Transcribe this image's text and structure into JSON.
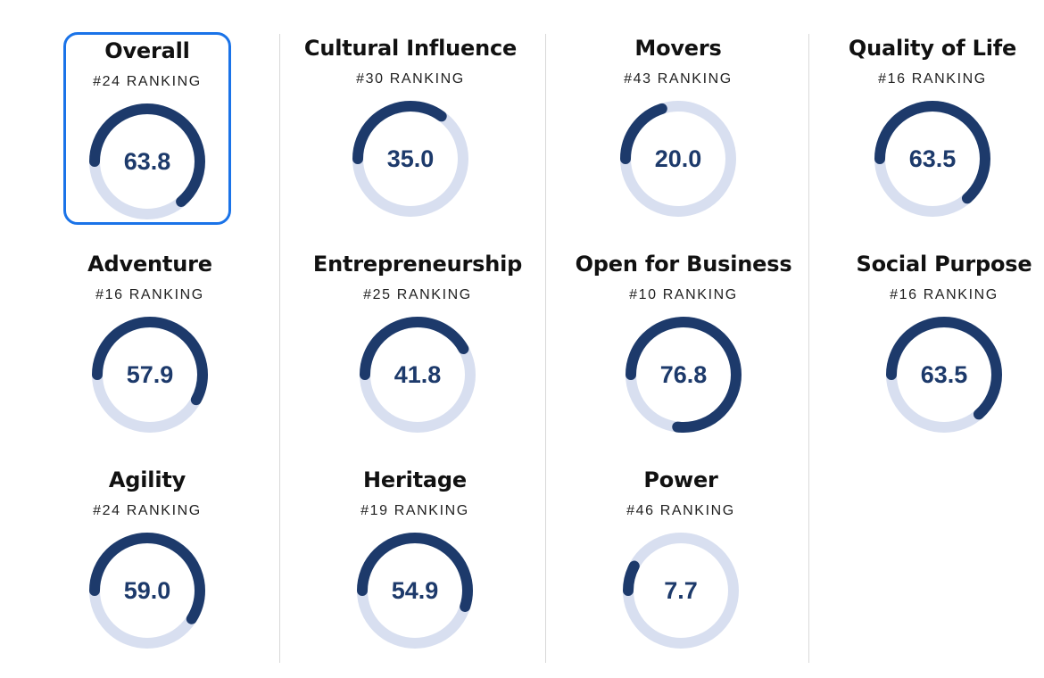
{
  "colors": {
    "track": "#d8dff0",
    "progress": "#1d3a6b",
    "selected_border": "#1a73e8"
  },
  "scale_max": 100,
  "cards": [
    {
      "title": "Overall",
      "rank": "#24 RANKING",
      "value": "63.8",
      "score": 63.8,
      "selected": true
    },
    {
      "title": "Cultural Influence",
      "rank": "#30 RANKING",
      "value": "35.0",
      "score": 35.0
    },
    {
      "title": "Movers",
      "rank": "#43 RANKING",
      "value": "20.0",
      "score": 20.0
    },
    {
      "title": "Quality of Life",
      "rank": "#16 RANKING",
      "value": "63.5",
      "score": 63.5
    },
    {
      "title": "Adventure",
      "rank": "#16 RANKING",
      "value": "57.9",
      "score": 57.9
    },
    {
      "title": "Entrepreneurship",
      "rank": "#25 RANKING",
      "value": "41.8",
      "score": 41.8
    },
    {
      "title": "Open for Business",
      "rank": "#10 RANKING",
      "value": "76.8",
      "score": 76.8
    },
    {
      "title": "Social Purpose",
      "rank": "#16 RANKING",
      "value": "63.5",
      "score": 63.5
    },
    {
      "title": "Agility",
      "rank": "#24 RANKING",
      "value": "59.0",
      "score": 59.0
    },
    {
      "title": "Heritage",
      "rank": "#19 RANKING",
      "value": "54.9",
      "score": 54.9
    },
    {
      "title": "Power",
      "rank": "#46 RANKING",
      "value": "7.7",
      "score": 7.7
    }
  ]
}
